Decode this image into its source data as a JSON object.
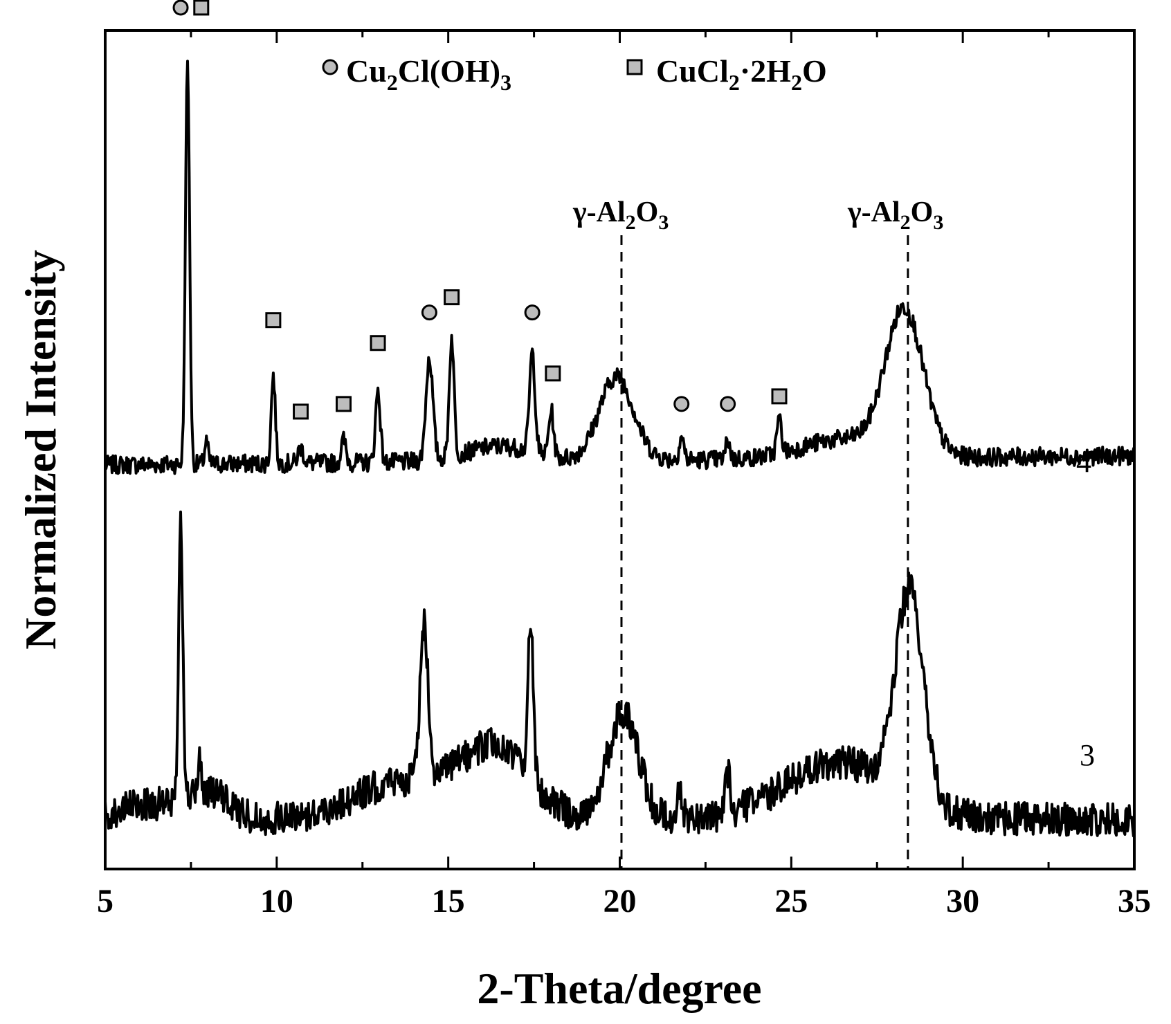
{
  "chart_data": {
    "type": "line",
    "xlabel": "2-Theta/degree",
    "ylabel": "Normalized Intensity",
    "xlim": [
      5,
      35
    ],
    "ylim": [
      0,
      1.1
    ],
    "x_ticks": [
      "5",
      "10",
      "15",
      "20",
      "25",
      "30",
      "35"
    ],
    "y_ticks_labeled": false,
    "grid": false,
    "legend": {
      "placement": "top-center",
      "entries": [
        {
          "marker": "circle",
          "main": "Cu",
          "sub1": "2",
          "mid": "Cl(OH)",
          "sub2": "3",
          "tail": "",
          "phase": "Cu2Cl(OH)3"
        },
        {
          "marker": "square",
          "main": "CuCl",
          "sub1": "2",
          "mid": "·2H",
          "sub2": "2",
          "tail": "O",
          "phase": "CuCl2·2H2O"
        }
      ]
    },
    "reference_lines": [
      {
        "x": 20.05,
        "label_pre": "γ-Al",
        "label_sub1": "2",
        "label_mid": "O",
        "label_sub2": "3"
      },
      {
        "x": 28.4,
        "label_pre": "γ-Al",
        "label_sub1": "2",
        "label_mid": "O",
        "label_sub2": "3"
      }
    ],
    "series": [
      {
        "name": "4",
        "baseline": 0.53,
        "slope": 0.0004,
        "noise": 0.012,
        "peaks": [
          {
            "x": 7.4,
            "height": 0.53,
            "width": 0.06
          },
          {
            "x": 7.95,
            "height": 0.03,
            "width": 0.05
          },
          {
            "x": 9.9,
            "height": 0.115,
            "width": 0.06
          },
          {
            "x": 10.7,
            "height": 0.02,
            "width": 0.08
          },
          {
            "x": 11.95,
            "height": 0.03,
            "width": 0.07
          },
          {
            "x": 12.95,
            "height": 0.095,
            "width": 0.07
          },
          {
            "x": 14.45,
            "height": 0.135,
            "width": 0.1
          },
          {
            "x": 15.1,
            "height": 0.155,
            "width": 0.07
          },
          {
            "x": 17.45,
            "height": 0.13,
            "width": 0.08
          },
          {
            "x": 18.0,
            "height": 0.06,
            "width": 0.07
          },
          {
            "x": 19.9,
            "height": 0.11,
            "width": 0.5
          },
          {
            "x": 21.8,
            "height": 0.03,
            "width": 0.07
          },
          {
            "x": 23.15,
            "height": 0.025,
            "width": 0.06
          },
          {
            "x": 24.65,
            "height": 0.045,
            "width": 0.07
          },
          {
            "x": 28.3,
            "height": 0.19,
            "width": 0.55
          }
        ],
        "bumps": [
          {
            "x": 16.5,
            "height": 0.02,
            "width": 1.0
          },
          {
            "x": 26.5,
            "height": 0.025,
            "width": 1.2
          }
        ],
        "markers": [
          {
            "x": 7.2,
            "shape": "circle",
            "height": 0.6
          },
          {
            "x": 7.8,
            "shape": "square",
            "height": 0.6
          },
          {
            "x": 9.9,
            "shape": "square",
            "height": 0.19
          },
          {
            "x": 10.7,
            "shape": "square",
            "height": 0.07
          },
          {
            "x": 11.95,
            "shape": "square",
            "height": 0.08
          },
          {
            "x": 12.95,
            "shape": "square",
            "height": 0.16
          },
          {
            "x": 14.45,
            "shape": "circle",
            "height": 0.2
          },
          {
            "x": 15.1,
            "shape": "square",
            "height": 0.22
          },
          {
            "x": 17.45,
            "shape": "circle",
            "height": 0.2
          },
          {
            "x": 18.05,
            "shape": "square",
            "height": 0.12
          },
          {
            "x": 21.8,
            "shape": "circle",
            "height": 0.08
          },
          {
            "x": 23.15,
            "shape": "circle",
            "height": 0.08
          },
          {
            "x": 24.65,
            "shape": "square",
            "height": 0.09
          }
        ]
      },
      {
        "name": "3",
        "baseline": 0.065,
        "slope": 0.0,
        "noise": 0.022,
        "peaks": [
          {
            "x": 7.2,
            "height": 0.38,
            "width": 0.06
          },
          {
            "x": 7.75,
            "height": 0.04,
            "width": 0.05
          },
          {
            "x": 14.3,
            "height": 0.2,
            "width": 0.12
          },
          {
            "x": 17.4,
            "height": 0.2,
            "width": 0.08
          },
          {
            "x": 20.1,
            "height": 0.14,
            "width": 0.45
          },
          {
            "x": 21.75,
            "height": 0.035,
            "width": 0.07
          },
          {
            "x": 23.15,
            "height": 0.05,
            "width": 0.07
          },
          {
            "x": 28.45,
            "height": 0.27,
            "width": 0.4
          }
        ],
        "bumps": [
          {
            "x": 6.3,
            "height": 0.02,
            "width": 0.8
          },
          {
            "x": 8.0,
            "height": 0.035,
            "width": 0.6
          },
          {
            "x": 13.7,
            "height": 0.05,
            "width": 1.4
          },
          {
            "x": 16.4,
            "height": 0.09,
            "width": 1.0
          },
          {
            "x": 26.4,
            "height": 0.075,
            "width": 1.6
          }
        ],
        "markers": []
      }
    ]
  }
}
